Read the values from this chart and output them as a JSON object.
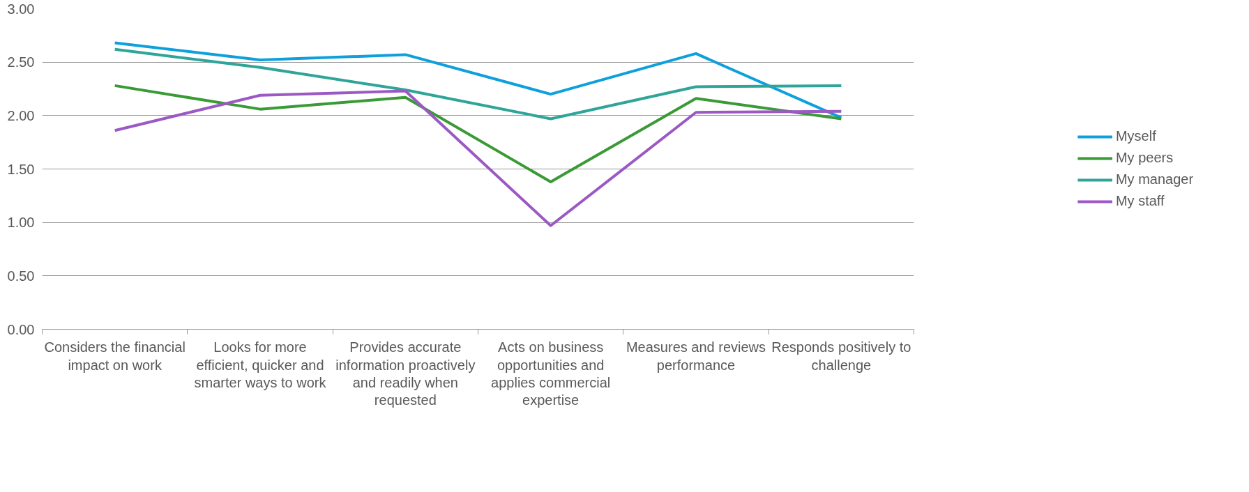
{
  "chart_data": {
    "type": "line",
    "categories": [
      "Considers the financial impact on work",
      "Looks for more efficient, quicker and smarter ways to work",
      "Provides accurate information proactively and readily when requested",
      "Acts on business opportunities and applies commercial expertise",
      "Measures and reviews performance",
      "Responds positively to challenge"
    ],
    "series": [
      {
        "name": "Myself",
        "color": "#0ea0dc",
        "values": [
          2.68,
          2.52,
          2.57,
          2.2,
          2.58,
          1.98
        ]
      },
      {
        "name": "My peers",
        "color": "#3a9a35",
        "values": [
          2.28,
          2.06,
          2.17,
          1.38,
          2.16,
          1.97
        ]
      },
      {
        "name": "My manager",
        "color": "#2fa59a",
        "values": [
          2.62,
          2.45,
          2.24,
          1.97,
          2.27,
          2.28
        ]
      },
      {
        "name": "My staff",
        "color": "#9b59c4",
        "values": [
          1.86,
          2.19,
          2.23,
          0.97,
          2.03,
          2.04
        ]
      }
    ],
    "ylim": [
      0,
      3
    ],
    "yticks": [
      {
        "value": 0,
        "label": "0.00"
      },
      {
        "value": 0.5,
        "label": "0.50"
      },
      {
        "value": 1,
        "label": "1.00"
      },
      {
        "value": 1.5,
        "label": "1.50"
      },
      {
        "value": 2,
        "label": "2.00"
      },
      {
        "value": 2.5,
        "label": "2.50"
      },
      {
        "value": 3,
        "label": "3.00"
      }
    ],
    "grid": "y",
    "legend": "right",
    "marker": "none",
    "line_style": "solid"
  }
}
